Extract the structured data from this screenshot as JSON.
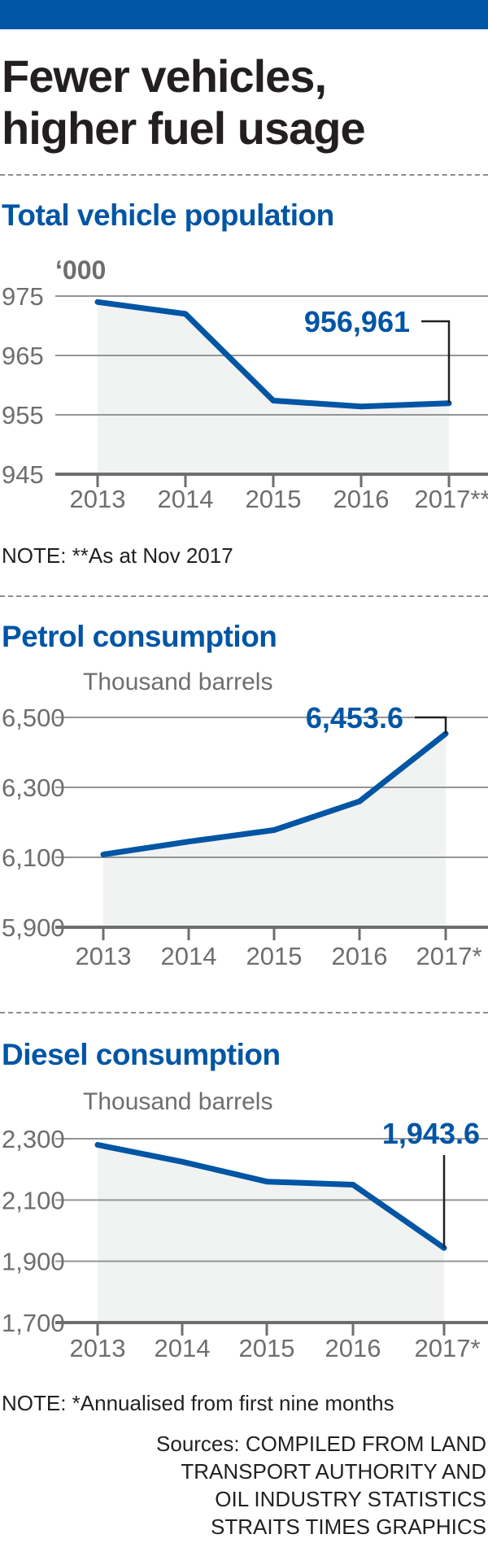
{
  "headline": [
    "Fewer vehicles,",
    "higher fuel usage"
  ],
  "colors": {
    "accent": "#0055a4",
    "area": "#f1f2f2",
    "grid": "#939598",
    "tick": "#6d6e70"
  },
  "chart_data": [
    {
      "type": "area",
      "title": "Total vehicle population",
      "unit": "‘000",
      "categories": [
        "2013",
        "2014",
        "2015",
        "2016",
        "2017**"
      ],
      "values": [
        974,
        972,
        957.4,
        956.4,
        956.961
      ],
      "y_ticks": [
        "975",
        "965",
        "955",
        "945"
      ],
      "ylim": [
        945,
        975
      ],
      "callout": {
        "label": "956,961",
        "index": 4
      },
      "note": "NOTE: **As at Nov 2017"
    },
    {
      "type": "area",
      "title": "Petrol consumption",
      "unit": "Thousand barrels",
      "categories": [
        "2013",
        "2014",
        "2015",
        "2016",
        "2017*"
      ],
      "values": [
        6108,
        6145,
        6178,
        6260,
        6453.6
      ],
      "y_ticks": [
        "6,500",
        "6,300",
        "6,100",
        "5,900"
      ],
      "ylim": [
        5900,
        6500
      ],
      "callout": {
        "label": "6,453.6",
        "index": 4
      }
    },
    {
      "type": "area",
      "title": "Diesel consumption",
      "unit": "Thousand barrels",
      "categories": [
        "2013",
        "2014",
        "2015",
        "2016",
        "2017*"
      ],
      "values": [
        2280,
        2225,
        2160,
        2150,
        1943.6
      ],
      "y_ticks": [
        "2,300",
        "2,100",
        "1,900",
        "1,700"
      ],
      "ylim": [
        1700,
        2300
      ],
      "callout": {
        "label": "1,943.6",
        "index": 4
      }
    }
  ],
  "footnote": "NOTE: *Annualised from first nine months",
  "sources": [
    "Sources: COMPILED FROM LAND",
    "TRANSPORT AUTHORITY AND",
    "OIL INDUSTRY STATISTICS",
    "STRAITS TIMES GRAPHICS"
  ]
}
